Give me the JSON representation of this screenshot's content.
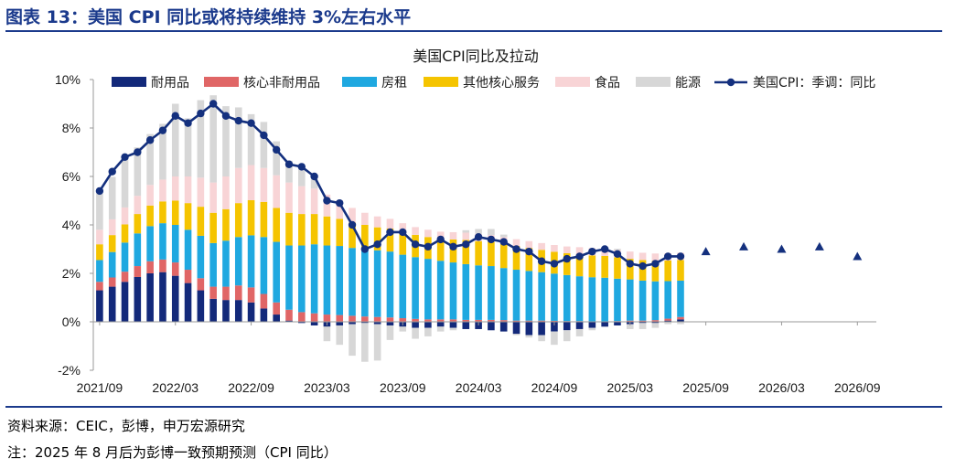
{
  "figure": {
    "title": "图表 13：美国 CPI 同比或将持续维持 3%左右水平",
    "source": "资料来源：CEIC，彭博，申万宏源研究",
    "note": "注：2025 年 8 月后为彭博一致预期预测（CPI 同比）"
  },
  "colors": {
    "durable": "#13297a",
    "core_nondurable": "#e06666",
    "rent": "#1fa8e0",
    "other_services": "#f5c400",
    "food": "#f8d4d6",
    "energy": "#d7d7d7",
    "line": "#14307e",
    "forecast": "#14307e",
    "title": "#1b3a8c"
  },
  "chart_data": {
    "type": "bar",
    "title": "美国CPI同比及拉动",
    "xlabel": "",
    "ylabel": "",
    "ylim": [
      -2,
      10
    ],
    "yticks": [
      "-2%",
      "0%",
      "2%",
      "4%",
      "6%",
      "8%",
      "10%"
    ],
    "x_tick_labels": [
      "2021/09",
      "2022/03",
      "2022/09",
      "2023/03",
      "2023/09",
      "2024/03",
      "2024/09",
      "2025/03",
      "2025/09",
      "2026/03",
      "2026/09"
    ],
    "legend": [
      "耐用品",
      "核心非耐用品",
      "房租",
      "其他核心服务",
      "食品",
      "能源",
      "美国CPI：季调：同比"
    ],
    "legend_position": "top",
    "categories": [
      "2021/09",
      "2021/10",
      "2021/11",
      "2021/12",
      "2022/01",
      "2022/02",
      "2022/03",
      "2022/04",
      "2022/05",
      "2022/06",
      "2022/07",
      "2022/08",
      "2022/09",
      "2022/10",
      "2022/11",
      "2022/12",
      "2023/01",
      "2023/02",
      "2023/03",
      "2023/04",
      "2023/05",
      "2023/06",
      "2023/07",
      "2023/08",
      "2023/09",
      "2023/10",
      "2023/11",
      "2023/12",
      "2024/01",
      "2024/02",
      "2024/03",
      "2024/04",
      "2024/05",
      "2024/06",
      "2024/07",
      "2024/08",
      "2024/09",
      "2024/10",
      "2024/11",
      "2024/12",
      "2025/01",
      "2025/02",
      "2025/03",
      "2025/04",
      "2025/05",
      "2025/06",
      "2025/07"
    ],
    "series": [
      {
        "name": "耐用品",
        "values": [
          1.3,
          1.45,
          1.65,
          1.85,
          2.0,
          2.05,
          1.9,
          1.6,
          1.3,
          0.95,
          0.9,
          0.9,
          0.8,
          0.55,
          0.3,
          0.05,
          -0.05,
          -0.15,
          -0.2,
          -0.15,
          -0.1,
          -0.05,
          -0.1,
          -0.15,
          -0.2,
          -0.25,
          -0.25,
          -0.2,
          -0.25,
          -0.3,
          -0.3,
          -0.35,
          -0.4,
          -0.5,
          -0.55,
          -0.55,
          -0.4,
          -0.35,
          -0.3,
          -0.25,
          -0.2,
          -0.15,
          -0.1,
          -0.05,
          -0.05,
          0.05,
          0.1
        ]
      },
      {
        "name": "核心非耐用品",
        "values": [
          0.35,
          0.38,
          0.42,
          0.45,
          0.5,
          0.52,
          0.55,
          0.55,
          0.5,
          0.5,
          0.55,
          0.6,
          0.62,
          0.6,
          0.5,
          0.45,
          0.4,
          0.35,
          0.3,
          0.28,
          0.25,
          0.22,
          0.2,
          0.18,
          0.15,
          0.12,
          0.1,
          0.1,
          0.1,
          0.08,
          0.08,
          0.08,
          0.07,
          0.05,
          0.05,
          0.05,
          0.04,
          0.03,
          0.03,
          0.02,
          0.02,
          0.03,
          0.05,
          0.05,
          0.07,
          0.08,
          0.1
        ]
      },
      {
        "name": "房租",
        "values": [
          0.9,
          1.05,
          1.2,
          1.35,
          1.45,
          1.5,
          1.55,
          1.65,
          1.75,
          1.8,
          1.9,
          2.0,
          2.15,
          2.35,
          2.5,
          2.65,
          2.75,
          2.85,
          2.85,
          2.85,
          2.8,
          2.78,
          2.75,
          2.72,
          2.62,
          2.55,
          2.5,
          2.42,
          2.35,
          2.3,
          2.25,
          2.22,
          2.15,
          2.1,
          2.05,
          2.0,
          1.95,
          1.9,
          1.85,
          1.82,
          1.8,
          1.75,
          1.7,
          1.65,
          1.6,
          1.55,
          1.5
        ]
      },
      {
        "name": "其他核心服务",
        "values": [
          0.65,
          0.7,
          0.75,
          0.8,
          0.85,
          0.9,
          1.0,
          1.1,
          1.2,
          1.25,
          1.3,
          1.4,
          1.45,
          1.45,
          1.4,
          1.35,
          1.3,
          1.25,
          1.2,
          1.12,
          1.05,
          1.0,
          0.95,
          0.95,
          0.95,
          0.92,
          0.9,
          0.9,
          0.95,
          1.0,
          1.0,
          1.0,
          1.0,
          0.98,
          0.95,
          0.92,
          0.9,
          0.9,
          0.9,
          0.9,
          0.9,
          0.88,
          0.85,
          0.85,
          0.85,
          0.85,
          0.85
        ]
      },
      {
        "name": "食品",
        "values": [
          0.6,
          0.65,
          0.7,
          0.75,
          0.85,
          0.9,
          1.0,
          1.1,
          1.2,
          1.25,
          1.35,
          1.45,
          1.45,
          1.4,
          1.35,
          1.25,
          1.15,
          1.05,
          0.9,
          0.75,
          0.6,
          0.5,
          0.45,
          0.4,
          0.35,
          0.32,
          0.3,
          0.3,
          0.3,
          0.3,
          0.3,
          0.28,
          0.28,
          0.28,
          0.28,
          0.28,
          0.28,
          0.28,
          0.3,
          0.3,
          0.3,
          0.3,
          0.3,
          0.3,
          0.3,
          0.3,
          0.3
        ]
      },
      {
        "name": "能源",
        "values": [
          1.5,
          1.75,
          2.1,
          2.0,
          2.1,
          2.3,
          3.0,
          2.4,
          3.2,
          3.6,
          2.9,
          2.5,
          2.1,
          1.9,
          1.4,
          0.9,
          0.7,
          0.4,
          -0.6,
          -0.8,
          -1.3,
          -1.6,
          -1.5,
          -0.6,
          -0.2,
          -0.45,
          -0.35,
          -0.2,
          -0.1,
          0.1,
          0.2,
          0.25,
          0.1,
          -0.05,
          -0.1,
          -0.25,
          -0.55,
          -0.45,
          -0.3,
          -0.1,
          0.05,
          0.05,
          -0.2,
          -0.25,
          -0.2,
          -0.1,
          -0.1
        ]
      },
      {
        "name": "美国CPI：季调：同比",
        "type": "line",
        "values": [
          5.4,
          6.2,
          6.8,
          7.0,
          7.5,
          7.9,
          8.5,
          8.2,
          8.6,
          9.0,
          8.5,
          8.3,
          8.2,
          7.7,
          7.1,
          6.5,
          6.4,
          6.0,
          5.0,
          4.9,
          4.0,
          3.0,
          3.2,
          3.7,
          3.7,
          3.2,
          3.1,
          3.4,
          3.1,
          3.2,
          3.5,
          3.4,
          3.3,
          3.0,
          2.9,
          2.5,
          2.4,
          2.6,
          2.7,
          2.9,
          3.0,
          2.8,
          2.4,
          2.3,
          2.4,
          2.7,
          2.7
        ]
      }
    ],
    "forecast": {
      "name": "彭博一致预期预测",
      "marker": "triangle",
      "x": [
        "2025/09",
        "2025/12",
        "2026/03",
        "2026/06",
        "2026/09"
      ],
      "values": [
        2.9,
        3.1,
        3.0,
        3.1,
        2.7
      ]
    },
    "x_axis": [
      "2021/09",
      "2021/10",
      "2021/11",
      "2021/12",
      "2022/01",
      "2022/02",
      "2022/03",
      "2022/04",
      "2022/05",
      "2022/06",
      "2022/07",
      "2022/08",
      "2022/09",
      "2022/10",
      "2022/11",
      "2022/12",
      "2023/01",
      "2023/02",
      "2023/03",
      "2023/04",
      "2023/05",
      "2023/06",
      "2023/07",
      "2023/08",
      "2023/09",
      "2023/10",
      "2023/11",
      "2023/12",
      "2024/01",
      "2024/02",
      "2024/03",
      "2024/04",
      "2024/05",
      "2024/06",
      "2024/07",
      "2024/08",
      "2024/09",
      "2024/10",
      "2024/11",
      "2024/12",
      "2025/01",
      "2025/02",
      "2025/03",
      "2025/04",
      "2025/05",
      "2025/06",
      "2025/07",
      "2025/08",
      "2025/09",
      "2025/10",
      "2025/11",
      "2025/12",
      "2026/01",
      "2026/02",
      "2026/03",
      "2026/04",
      "2026/05",
      "2026/06",
      "2026/07",
      "2026/08",
      "2026/09",
      "2026/10"
    ]
  }
}
